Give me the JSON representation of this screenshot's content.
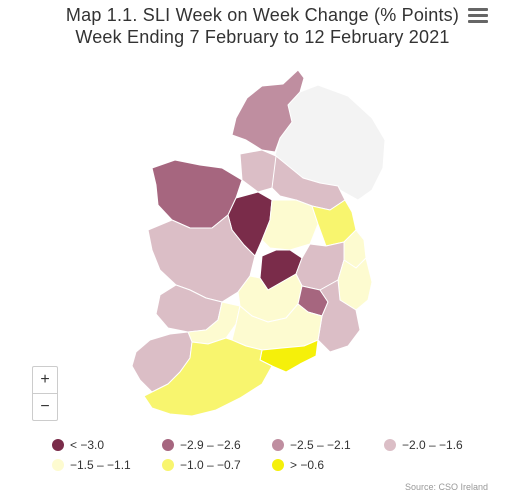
{
  "title": {
    "line1": "Map 1.1. SLI Week on Week Change (% Points)",
    "line2": "Week Ending 7 February to 12 February 2021"
  },
  "menu_icon": "hamburger-icon",
  "zoom": {
    "in_label": "+",
    "out_label": "−"
  },
  "legend": [
    {
      "label": "< −3.0",
      "color": "#7a2c4a"
    },
    {
      "label": "−2.9 – −2.6",
      "color": "#a6667f"
    },
    {
      "label": "−2.5 – −2.1",
      "color": "#bf8ea0"
    },
    {
      "label": "−2.0 – −1.6",
      "color": "#dbbec6"
    },
    {
      "label": "−1.5 – −1.1",
      "color": "#fdfbd0"
    },
    {
      "label": "−1.0 – −0.7",
      "color": "#f8f56e"
    },
    {
      "label": "> −0.6",
      "color": "#f5f00a"
    }
  ],
  "no_data_color": "#f3f3f3",
  "credit": "Source: CSO Ireland"
}
